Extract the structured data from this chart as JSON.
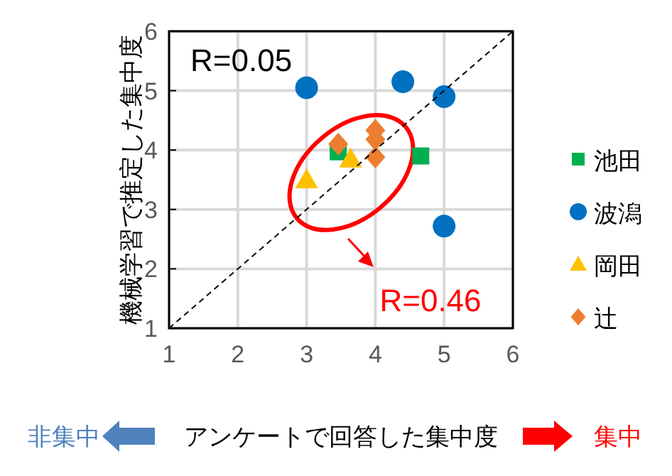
{
  "chart_data": {
    "type": "scatter",
    "xlabel": "アンケートで回答した集中度",
    "ylabel": "機械学習で推定した集中度",
    "xlim": [
      1,
      6
    ],
    "ylim": [
      1,
      6
    ],
    "xticks": [
      1,
      2,
      3,
      4,
      5,
      6
    ],
    "yticks": [
      1,
      2,
      3,
      4,
      5,
      6
    ],
    "grid": true,
    "legend": "right",
    "series": [
      {
        "name": "池田",
        "color": "#00b050",
        "marker": "square",
        "x": [
          3.46,
          4.66
        ],
        "values": [
          3.97,
          3.9
        ]
      },
      {
        "name": "波潟",
        "color": "#0070c0",
        "marker": "circle",
        "x": [
          3,
          4.4,
          5,
          5
        ],
        "values": [
          5.05,
          5.15,
          4.9,
          2.72
        ]
      },
      {
        "name": "岡田",
        "color": "#ffc000",
        "marker": "triangle",
        "x": [
          3,
          3.64
        ],
        "values": [
          3.5,
          3.85
        ]
      },
      {
        "name": "辻",
        "color": "#ed7d31",
        "marker": "diamond",
        "x": [
          3.46,
          4,
          4,
          4
        ],
        "values": [
          4.1,
          4.33,
          4.18,
          3.88
        ]
      },
      {
        "type": "line",
        "color": "#000000",
        "line_style": "dashed",
        "x": [
          1,
          6
        ],
        "values": [
          1,
          6
        ]
      }
    ],
    "annotations": [
      "R=0.05",
      "R=0.46",
      "非集中",
      "集中"
    ]
  }
}
